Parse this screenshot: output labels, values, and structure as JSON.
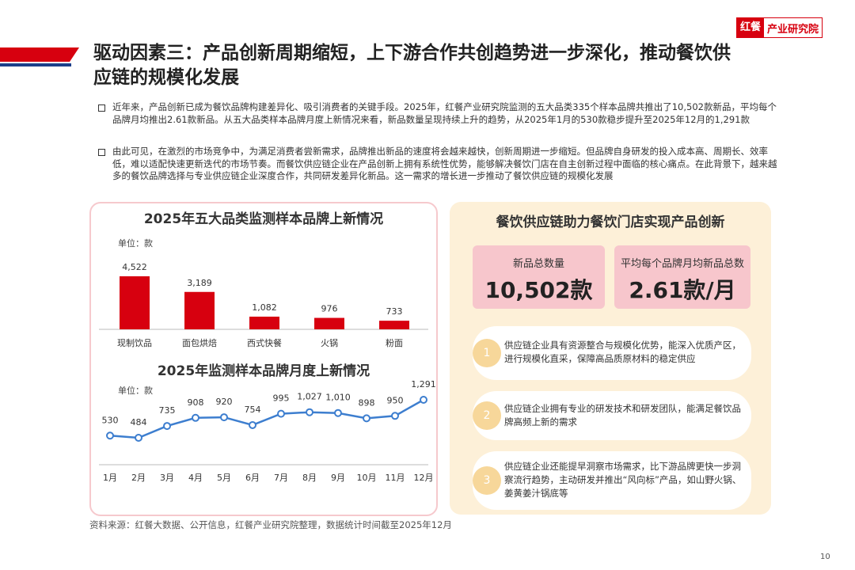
{
  "header": {
    "logo_mark": "红餐",
    "logo_text": "产业研究院"
  },
  "title": "驱动因素三：产品创新周期缩短，上下游合作共创趋势进一步深化，推动餐饮供应链的规模化发展",
  "bullets": [
    "近年来，产品创新已成为餐饮品牌构建差异化、吸引消费者的关键手段。2025年，红餐产业研究院监测的五大品类335个样本品牌共推出了10,502款新品，平均每个品牌月均推出2.61款新品。从五大品类样本品牌月度上新情况来看，新品数量呈现持续上升的趋势，从2025年1月的530款稳步提升至2025年12月的1,291款",
    "由此可见，在激烈的市场竞争中，为满足消费者尝新需求，品牌推出新品的速度将会越来越快，创新周期进一步缩短。但品牌自身研发的投入成本高、周期长、效率低，难以适配快速更新迭代的市场节奏。而餐饮供应链企业在产品创新上拥有系统性优势，能够解决餐饮门店在自主创新过程中面临的核心痛点。在此背景下，越来越多的餐饮品牌选择与专业供应链企业深度合作，共同研发差异化新品。这一需求的增长进一步推动了餐饮供应链的规模化发展"
  ],
  "chart_data": [
    {
      "type": "bar",
      "title": "2025年五大品类监测样本品牌上新情况",
      "unit": "单位：款",
      "color": "#d7000f",
      "categories": [
        "现制饮品",
        "面包烘焙",
        "西式快餐",
        "火锅",
        "粉面"
      ],
      "values": [
        4522,
        3189,
        1082,
        976,
        733
      ],
      "value_labels": [
        "4,522",
        "3,189",
        "1,082",
        "976",
        "733"
      ]
    },
    {
      "type": "line",
      "title": "2025年监测样本品牌月度上新情况",
      "unit": "单位：款",
      "color": "#3d7ecf",
      "categories": [
        "1月",
        "2月",
        "3月",
        "4月",
        "5月",
        "6月",
        "7月",
        "8月",
        "9月",
        "10月",
        "11月",
        "12月"
      ],
      "values": [
        530,
        484,
        735,
        908,
        920,
        754,
        995,
        1027,
        1010,
        898,
        950,
        1291
      ],
      "value_labels": [
        "530",
        "484",
        "735",
        "908",
        "920",
        "754",
        "995",
        "1,027",
        "1,010",
        "898",
        "950",
        "1,291"
      ]
    }
  ],
  "panel": {
    "title": "餐饮供应链助力餐饮门店实现产品创新",
    "stats": [
      {
        "label": "新品总数量",
        "value": "10,502款"
      },
      {
        "label": "平均每个品牌月均新品总数",
        "value": "2.61款/月"
      }
    ],
    "items": [
      {
        "num": "1",
        "text": "供应链企业具有资源整合与规模化优势，能深入优质产区，进行规模化直采，保障高品质原材料的稳定供应"
      },
      {
        "num": "2",
        "text": "供应链企业拥有专业的研发技术和研发团队，能满足餐饮品牌高频上新的需求"
      },
      {
        "num": "3",
        "text": "供应链企业还能提早洞察市场需求，比下游品牌更快一步洞察流行趋势，主动研发并推出“风向标”产品，如山野火锅、姜黄姜汁锅底等"
      }
    ]
  },
  "source": "资料来源：红餐大数据、公开信息，红餐产业研究院整理，数据统计时间截至2025年12月",
  "page_number": "10"
}
